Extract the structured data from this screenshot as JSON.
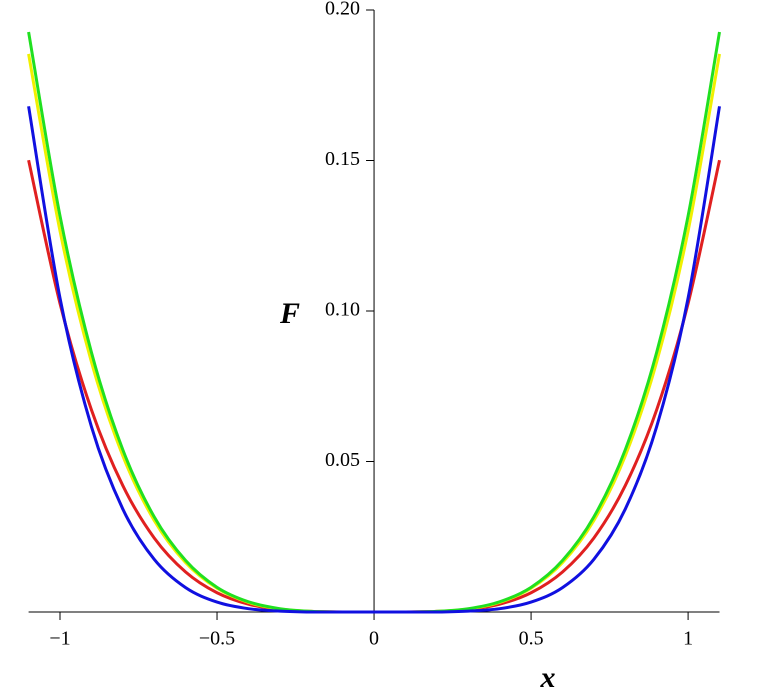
{
  "chart_data": {
    "type": "line",
    "x_label": "x",
    "y_label": "F",
    "x": [
      -1.1,
      -1.0,
      -0.9,
      -0.8,
      -0.7,
      -0.6,
      -0.5,
      -0.4,
      -0.3,
      -0.2,
      -0.1,
      0,
      0.1,
      0.2,
      0.3,
      0.4,
      0.5,
      0.6,
      0.7,
      0.8,
      0.9,
      1.0,
      1.1
    ],
    "series": [
      {
        "color": "#e02020",
        "values": [
          0.1501,
          0.1025,
          0.0672,
          0.042,
          0.0246,
          0.0133,
          0.0064,
          0.0026,
          0.0008,
          0.0002,
          0,
          0,
          0,
          0.0002,
          0.0008,
          0.0026,
          0.0064,
          0.0133,
          0.0246,
          0.042,
          0.0672,
          0.1025,
          0.1501
        ]
      },
      {
        "color": "#f0f000",
        "values": [
          0.1854,
          0.1266,
          0.0831,
          0.0519,
          0.0304,
          0.0164,
          0.0079,
          0.0032,
          0.001,
          0.0002,
          0,
          0,
          0,
          0.0002,
          0.001,
          0.0032,
          0.0079,
          0.0164,
          0.0304,
          0.0519,
          0.0831,
          0.1266,
          0.1854
        ]
      },
      {
        "color": "#20e020",
        "values": [
          0.1927,
          0.1316,
          0.0863,
          0.0539,
          0.0316,
          0.0171,
          0.0082,
          0.0034,
          0.0011,
          0.0002,
          0,
          0,
          0,
          0.0002,
          0.0011,
          0.0034,
          0.0082,
          0.0171,
          0.0316,
          0.0539,
          0.0863,
          0.1316,
          0.1927
        ]
      },
      {
        "color": "#1010e0",
        "values": [
          0.168,
          0.1043,
          0.0616,
          0.0342,
          0.0175,
          0.0081,
          0.0033,
          0.0011,
          0.0003,
          0,
          0,
          0,
          0,
          0,
          0.0003,
          0.0011,
          0.0033,
          0.0081,
          0.0175,
          0.0342,
          0.0616,
          0.1043,
          0.168
        ]
      }
    ],
    "xlim": [
      -1.1,
      1.1
    ],
    "ylim": [
      0,
      0.2
    ],
    "xticks": [
      {
        "value": -1,
        "label": "−1"
      },
      {
        "value": -0.5,
        "label": "−0.5"
      },
      0,
      0.5,
      1
    ],
    "yticks": [
      0.05,
      {
        "value": 0.1,
        "label": "0.10"
      },
      0.15,
      {
        "value": 0.2,
        "label": "0.20"
      }
    ]
  }
}
